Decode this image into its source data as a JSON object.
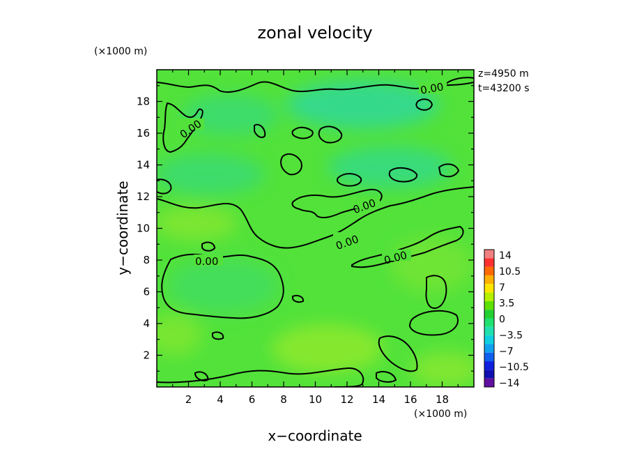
{
  "chart_data": {
    "type": "heatmap",
    "title": "zonal velocity",
    "xlabel": "x−coordinate",
    "ylabel": "y−coordinate",
    "x_unit": "(×1000 m)",
    "y_unit": "(×1000 m)",
    "xlim": [
      0,
      20
    ],
    "ylim": [
      0,
      20
    ],
    "x_ticks": [
      "2",
      "4",
      "6",
      "8",
      "10",
      "12",
      "14",
      "16",
      "18"
    ],
    "y_ticks": [
      "2",
      "4",
      "6",
      "8",
      "10",
      "12",
      "14",
      "16",
      "18"
    ],
    "annotations": [
      "z=4950 m",
      "t=43200 s"
    ],
    "contour_labels": [
      "0.00",
      "0.00",
      "0.00",
      "0.00",
      "0.00",
      "0.00"
    ],
    "colorbar": {
      "labels": [
        "14",
        "10.5",
        "7",
        "3.5",
        "0",
        "−3.5",
        "−7",
        "−10.5",
        "−14"
      ],
      "colors": [
        "#f08080",
        "#ff3030",
        "#ff6a00",
        "#ffb000",
        "#ffe600",
        "#b6f000",
        "#5ee000",
        "#22d030",
        "#20e070",
        "#20e0b0",
        "#10d0e0",
        "#10a0f0",
        "#1060f0",
        "#1020e0",
        "#1010b0",
        "#6010a0"
      ]
    },
    "grid": false
  }
}
